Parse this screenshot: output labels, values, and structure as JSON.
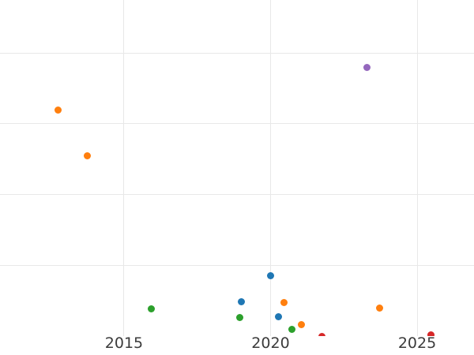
{
  "figure": {
    "background_color": "#ffffff",
    "grid_color": "#e8e8e8",
    "tick_label_color": "#3b3b3b"
  },
  "chart_data": {
    "type": "scatter",
    "title": "",
    "xlabel": "",
    "ylabel": "",
    "grid": "on",
    "legend": "none",
    "xlim": [
      2010.77,
      2026.94
    ],
    "ylim": [
      0,
      4.75
    ],
    "x_ticks": [
      {
        "value": 2015,
        "label": "2015"
      },
      {
        "value": 2020,
        "label": "2020"
      },
      {
        "value": 2025,
        "label": "2025"
      }
    ],
    "y_gridlines": [
      1,
      2,
      3,
      4
    ],
    "y_tick_labels_visible": false,
    "marker_diameter_px": 9,
    "series": [
      {
        "name": "blue",
        "color": "#1f77b4",
        "points": [
          {
            "x": 2019.0,
            "y": 0.48
          },
          {
            "x": 2020.0,
            "y": 0.85
          },
          {
            "x": 2020.26,
            "y": 0.27
          }
        ]
      },
      {
        "name": "orange",
        "color": "#ff7f0e",
        "points": [
          {
            "x": 2012.76,
            "y": 3.19
          },
          {
            "x": 2013.76,
            "y": 2.55
          },
          {
            "x": 2020.45,
            "y": 0.47
          },
          {
            "x": 2021.06,
            "y": 0.16
          },
          {
            "x": 2023.73,
            "y": 0.4
          }
        ]
      },
      {
        "name": "green",
        "color": "#2ca02c",
        "points": [
          {
            "x": 2015.92,
            "y": 0.39
          },
          {
            "x": 2018.96,
            "y": 0.26
          },
          {
            "x": 2020.74,
            "y": 0.1
          }
        ]
      },
      {
        "name": "red",
        "color": "#d62728",
        "points": [
          {
            "x": 2021.74,
            "y": 0.0
          },
          {
            "x": 2025.48,
            "y": 0.02
          }
        ]
      },
      {
        "name": "purple",
        "color": "#9467bd",
        "points": [
          {
            "x": 2023.28,
            "y": 3.8
          }
        ]
      }
    ]
  }
}
